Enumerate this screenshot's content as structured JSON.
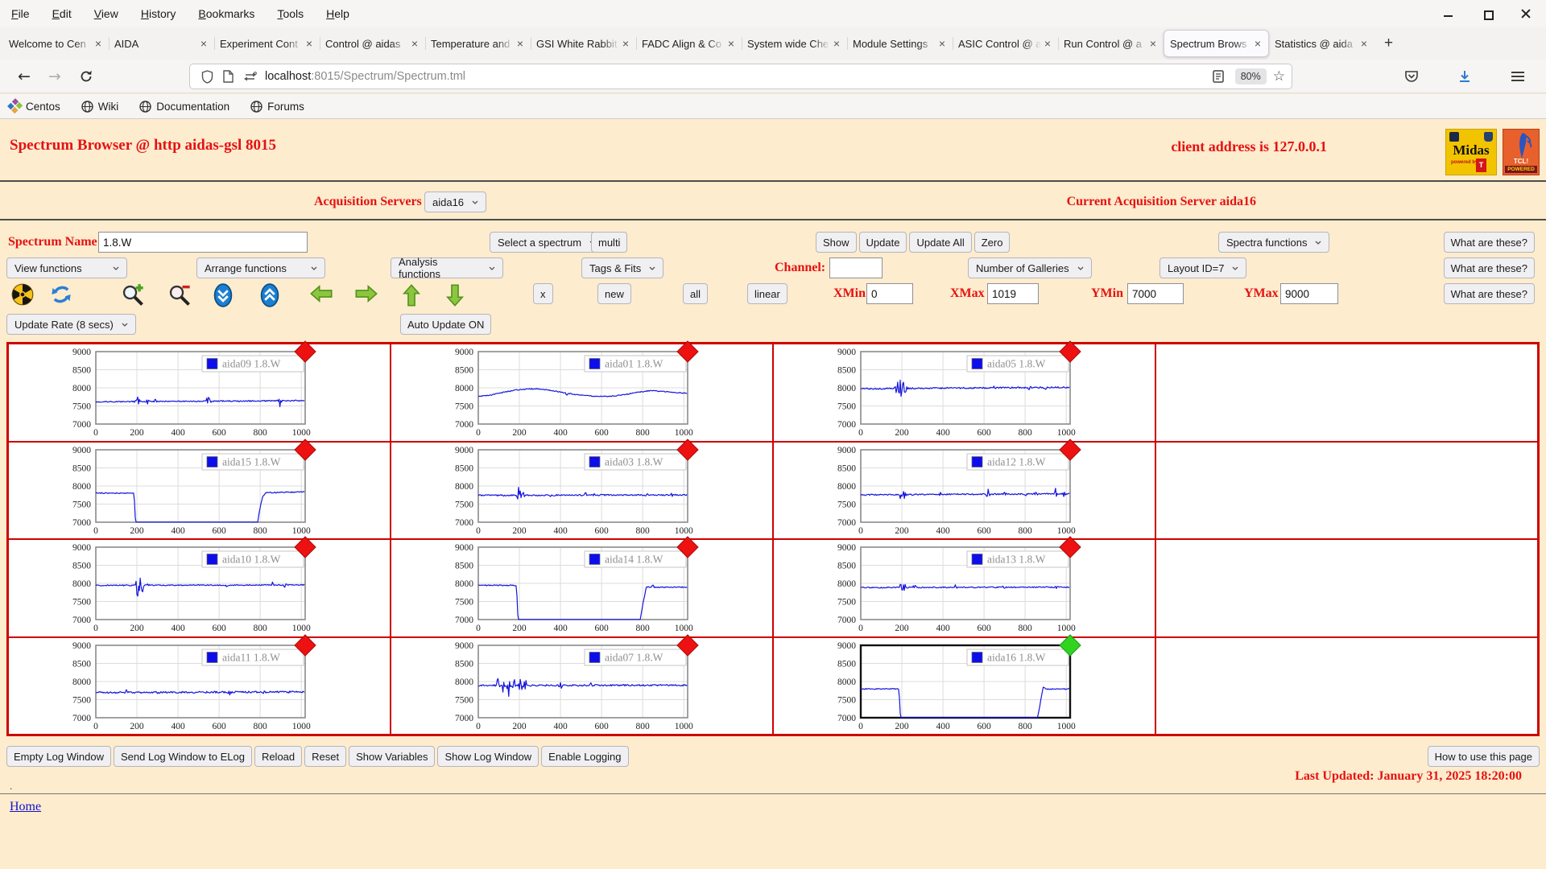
{
  "menubar": {
    "items": [
      "File",
      "Edit",
      "View",
      "History",
      "Bookmarks",
      "Tools",
      "Help"
    ]
  },
  "tabbar": {
    "close_glyph": "×",
    "new_tab_glyph": "+",
    "active_index": 11,
    "tabs": [
      "Welcome to Cen",
      "AIDA",
      "Experiment Cont",
      "Control @ aidas",
      "Temperature and",
      "GSI White Rabbit",
      "FADC Align & Co",
      "System wide Che",
      "Module Settings",
      "ASIC Control @ a",
      "Run Control @ a",
      "Spectrum Brows",
      "Statistics @ aida"
    ]
  },
  "navbar": {
    "url_host": "localhost",
    "url_rest": ":8015/Spectrum/Spectrum.tml",
    "zoom_badge": "80%",
    "star_glyph": "☆",
    "back_glyph": "←",
    "forward_glyph": "→"
  },
  "bookmarks": {
    "items": [
      "Centos",
      "Wiki",
      "Documentation",
      "Forums"
    ]
  },
  "header": {
    "title": "Spectrum Browser @ http aidas-gsl 8015",
    "client": "client address is 127.0.0.1",
    "midas_label": "Midas",
    "midas_powered": "powered by",
    "midas_tcl": "T",
    "tcl_label": "TCL!",
    "tcl_powered": "POWERED"
  },
  "acquisition": {
    "label": "Acquisition Servers",
    "selected": "aida16",
    "current": "Current Acquisition Server aida16"
  },
  "controls": {
    "spectrum_name_label": "Spectrum Name:",
    "spectrum_name_value": "1.8.W",
    "select_spectrum": "Select a spectrum",
    "multi": "multi",
    "show": "Show",
    "update": "Update",
    "update_all": "Update All",
    "zero": "Zero",
    "spectra_functions": "Spectra functions",
    "what_are_these": "What are these?",
    "view_functions": "View functions",
    "arrange_functions": "Arrange functions",
    "analysis_functions": "Analysis functions",
    "tags_fits": "Tags & Fits",
    "channel_label": "Channel:",
    "channel_value": "",
    "number_of_galleries": "Number of Galleries",
    "layout_id": "Layout ID=7",
    "x": "x",
    "new": "new",
    "all": "all",
    "linear": "linear",
    "xmin_label": "XMin",
    "xmin": "0",
    "xmax_label": "XMax",
    "xmax": "1019",
    "ymin_label": "YMin",
    "ymin": "7000",
    "ymax_label": "YMax",
    "ymax": "9000",
    "update_rate": "Update Rate (8 secs)",
    "auto_update": "Auto Update ON"
  },
  "toolbar_icons": [
    "radiation",
    "refresh",
    "zoom-in",
    "zoom-out",
    "scroll-down",
    "scroll-up",
    "pan-left",
    "pan-right",
    "pan-up",
    "pan-down"
  ],
  "footer": {
    "buttons": [
      "Empty Log Window",
      "Send Log Window to ELog",
      "Reload",
      "Reset",
      "Show Variables",
      "Show Log Window",
      "Enable Logging"
    ],
    "how_to": "How to use this page",
    "last_updated": "Last Updated: January 31, 2025 18:20:00",
    "dot": ".",
    "home": "Home"
  },
  "colors": {
    "page_bg": "#fdecce",
    "accent_red": "#e51212",
    "table_border": "#cf0000",
    "trace_blue": "#1414dd",
    "marker_red": "#ee1111",
    "marker_green": "#30d420",
    "link_blue": "#1212cc"
  },
  "chart_data": {
    "type": "line",
    "title": "",
    "xlabel": "",
    "ylabel": "",
    "xlim": [
      0,
      1019
    ],
    "ylim": [
      7000,
      9000
    ],
    "xticks": [
      0,
      200,
      400,
      600,
      800,
      1000
    ],
    "yticks": [
      7000,
      7500,
      8000,
      8500,
      9000
    ],
    "grid": true,
    "legend_position": "top-right",
    "line_color": "#1414dd",
    "charts": [
      {
        "row": 0,
        "col": 0,
        "legend": "aida09 1.8.W",
        "marker": "red",
        "base": [
          [
            0,
            7615
          ],
          [
            1019,
            7645
          ]
        ],
        "noise": 16,
        "spikes": [
          [
            197,
            120
          ],
          [
            206,
            95
          ],
          [
            252,
            50
          ],
          [
            290,
            55
          ],
          [
            545,
            95
          ],
          [
            556,
            70
          ],
          [
            700,
            35
          ],
          [
            893,
            115
          ],
          [
            902,
            80
          ]
        ]
      },
      {
        "row": 0,
        "col": 1,
        "legend": "aida01 1.8.W",
        "marker": "red",
        "base": [
          [
            0,
            7760
          ],
          [
            50,
            7790
          ],
          [
            110,
            7860
          ],
          [
            170,
            7930
          ],
          [
            230,
            7965
          ],
          [
            290,
            7975
          ],
          [
            350,
            7935
          ],
          [
            410,
            7870
          ],
          [
            470,
            7820
          ],
          [
            530,
            7785
          ],
          [
            590,
            7760
          ],
          [
            650,
            7770
          ],
          [
            710,
            7810
          ],
          [
            770,
            7870
          ],
          [
            830,
            7920
          ],
          [
            890,
            7905
          ],
          [
            950,
            7870
          ],
          [
            1019,
            7855
          ]
        ],
        "noise": 13,
        "spikes": [
          [
            430,
            45
          ]
        ]
      },
      {
        "row": 0,
        "col": 2,
        "legend": "aida05 1.8.W",
        "marker": "red",
        "base": [
          [
            0,
            7975
          ],
          [
            500,
            7995
          ],
          [
            1019,
            8015
          ]
        ],
        "noise": 20,
        "spikes": [
          [
            175,
            150
          ],
          [
            190,
            255
          ],
          [
            205,
            225
          ],
          [
            218,
            150
          ],
          [
            420,
            65
          ],
          [
            650,
            55
          ],
          [
            820,
            45
          ],
          [
            900,
            65
          ]
        ]
      },
      {
        "row": 1,
        "col": 0,
        "legend": "aida15 1.8.W",
        "marker": "red",
        "base": [
          [
            0,
            7805
          ],
          [
            186,
            7805
          ],
          [
            193,
            7005
          ],
          [
            788,
            7005
          ],
          [
            798,
            7350
          ],
          [
            812,
            7700
          ],
          [
            828,
            7815
          ],
          [
            1019,
            7840
          ]
        ],
        "noise": 15,
        "spikes": []
      },
      {
        "row": 1,
        "col": 1,
        "legend": "aida03 1.8.W",
        "marker": "red",
        "base": [
          [
            0,
            7740
          ],
          [
            1019,
            7755
          ]
        ],
        "noise": 18,
        "spikes": [
          [
            196,
            160
          ],
          [
            207,
            130
          ],
          [
            218,
            90
          ],
          [
            350,
            70
          ],
          [
            520,
            55
          ],
          [
            565,
            45
          ],
          [
            820,
            40
          ],
          [
            940,
            35
          ]
        ]
      },
      {
        "row": 1,
        "col": 2,
        "legend": "aida12 1.8.W",
        "marker": "red",
        "base": [
          [
            0,
            7755
          ],
          [
            1019,
            7785
          ]
        ],
        "noise": 18,
        "spikes": [
          [
            198,
            140
          ],
          [
            210,
            100
          ],
          [
            390,
            45
          ],
          [
            620,
            85
          ],
          [
            700,
            50
          ],
          [
            798,
            95
          ],
          [
            850,
            60
          ],
          [
            948,
            115
          ],
          [
            990,
            70
          ]
        ]
      },
      {
        "row": 2,
        "col": 0,
        "legend": "aida10 1.8.W",
        "marker": "red",
        "base": [
          [
            0,
            7945
          ],
          [
            1019,
            7955
          ]
        ],
        "noise": 15,
        "spikes": [
          [
            203,
            240
          ],
          [
            214,
            190
          ],
          [
            228,
            120
          ],
          [
            255,
            80
          ],
          [
            640,
            45
          ],
          [
            860,
            55
          ],
          [
            920,
            40
          ]
        ]
      },
      {
        "row": 2,
        "col": 1,
        "legend": "aida14 1.8.W",
        "marker": "red",
        "base": [
          [
            0,
            7945
          ],
          [
            186,
            7945
          ],
          [
            193,
            7005
          ],
          [
            788,
            7005
          ],
          [
            800,
            7400
          ],
          [
            818,
            7905
          ],
          [
            860,
            7890
          ],
          [
            1019,
            7895
          ]
        ],
        "noise": 15,
        "spikes": [
          [
            850,
            55
          ]
        ]
      },
      {
        "row": 2,
        "col": 2,
        "legend": "aida13 1.8.W",
        "marker": "red",
        "base": [
          [
            0,
            7885
          ],
          [
            1019,
            7895
          ]
        ],
        "noise": 16,
        "spikes": [
          [
            200,
            200
          ],
          [
            212,
            140
          ],
          [
            262,
            60
          ],
          [
            460,
            55
          ],
          [
            700,
            45
          ],
          [
            950,
            55
          ]
        ]
      },
      {
        "row": 3,
        "col": 0,
        "legend": "aida11 1.8.W",
        "marker": "red",
        "base": [
          [
            0,
            7695
          ],
          [
            1019,
            7715
          ]
        ],
        "noise": 24,
        "spikes": [
          [
            150,
            50
          ],
          [
            300,
            40
          ],
          [
            460,
            45
          ],
          [
            650,
            50
          ],
          [
            820,
            40
          ],
          [
            940,
            45
          ]
        ]
      },
      {
        "row": 3,
        "col": 1,
        "legend": "aida07 1.8.W",
        "marker": "red",
        "base": [
          [
            0,
            7890
          ],
          [
            1019,
            7900
          ]
        ],
        "noise": 22,
        "spikes": [
          [
            95,
            120
          ],
          [
            120,
            180
          ],
          [
            148,
            210
          ],
          [
            175,
            160
          ],
          [
            205,
            190
          ],
          [
            230,
            120
          ],
          [
            400,
            75
          ],
          [
            550,
            55
          ],
          [
            700,
            40
          ]
        ]
      },
      {
        "row": 3,
        "col": 2,
        "legend": "aida16 1.8.W",
        "marker": "green",
        "selected": true,
        "base": [
          [
            0,
            7795
          ],
          [
            186,
            7795
          ],
          [
            193,
            7005
          ],
          [
            860,
            7005
          ],
          [
            872,
            7350
          ],
          [
            888,
            7850
          ],
          [
            905,
            7795
          ],
          [
            1019,
            7790
          ]
        ],
        "noise": 14,
        "spikes": []
      }
    ]
  }
}
